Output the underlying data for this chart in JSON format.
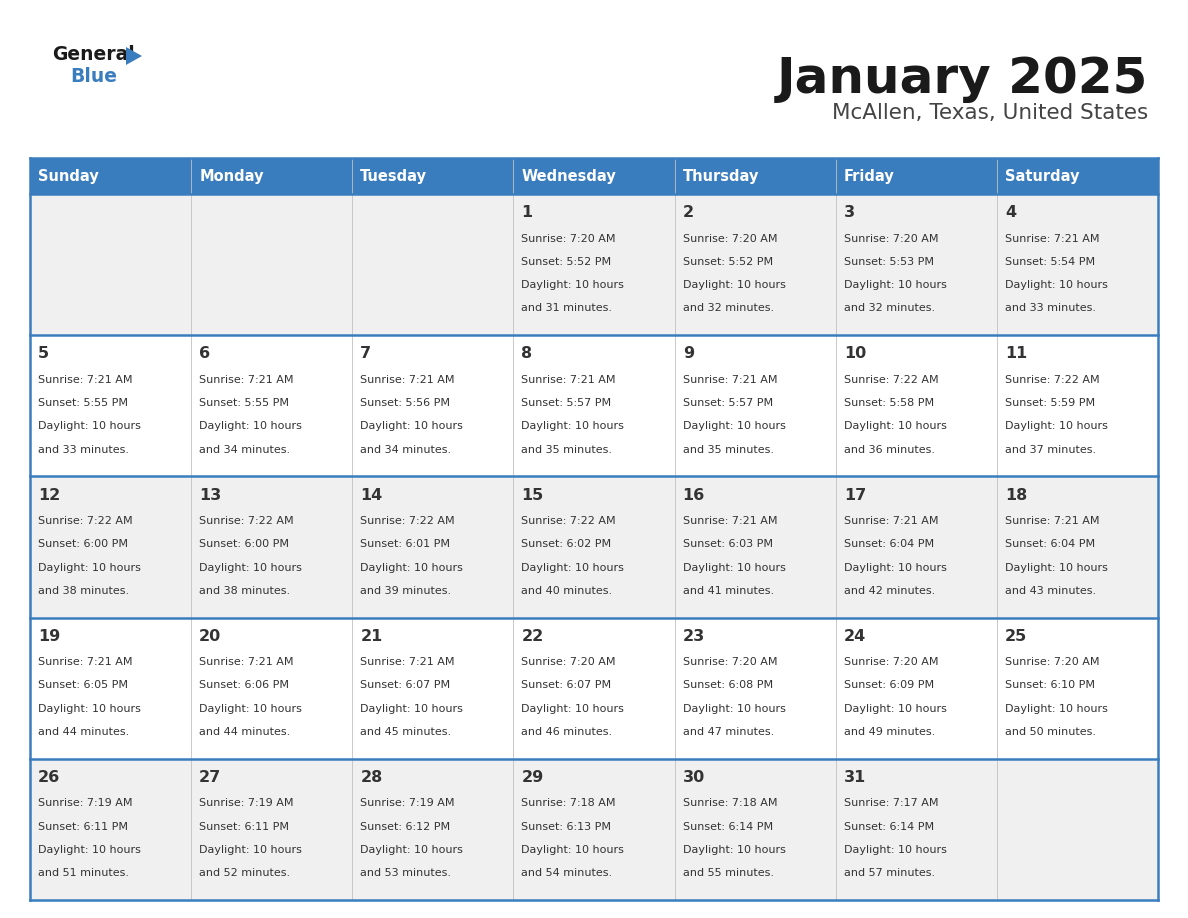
{
  "title": "January 2025",
  "subtitle": "McAllen, Texas, United States",
  "days_of_week": [
    "Sunday",
    "Monday",
    "Tuesday",
    "Wednesday",
    "Thursday",
    "Friday",
    "Saturday"
  ],
  "header_bg": "#3a7dbf",
  "header_text": "#ffffff",
  "cell_bg_odd": "#f0f0f0",
  "cell_bg_even": "#ffffff",
  "cell_text": "#333333",
  "border_color": "#3a7dbf",
  "title_color": "#1a1a1a",
  "subtitle_color": "#444444",
  "calendar": [
    [
      null,
      null,
      null,
      {
        "day": 1,
        "sunrise": "7:20 AM",
        "sunset": "5:52 PM",
        "daylight_min": 31
      },
      {
        "day": 2,
        "sunrise": "7:20 AM",
        "sunset": "5:52 PM",
        "daylight_min": 32
      },
      {
        "day": 3,
        "sunrise": "7:20 AM",
        "sunset": "5:53 PM",
        "daylight_min": 32
      },
      {
        "day": 4,
        "sunrise": "7:21 AM",
        "sunset": "5:54 PM",
        "daylight_min": 33
      }
    ],
    [
      {
        "day": 5,
        "sunrise": "7:21 AM",
        "sunset": "5:55 PM",
        "daylight_min": 33
      },
      {
        "day": 6,
        "sunrise": "7:21 AM",
        "sunset": "5:55 PM",
        "daylight_min": 34
      },
      {
        "day": 7,
        "sunrise": "7:21 AM",
        "sunset": "5:56 PM",
        "daylight_min": 34
      },
      {
        "day": 8,
        "sunrise": "7:21 AM",
        "sunset": "5:57 PM",
        "daylight_min": 35
      },
      {
        "day": 9,
        "sunrise": "7:21 AM",
        "sunset": "5:57 PM",
        "daylight_min": 35
      },
      {
        "day": 10,
        "sunrise": "7:22 AM",
        "sunset": "5:58 PM",
        "daylight_min": 36
      },
      {
        "day": 11,
        "sunrise": "7:22 AM",
        "sunset": "5:59 PM",
        "daylight_min": 37
      }
    ],
    [
      {
        "day": 12,
        "sunrise": "7:22 AM",
        "sunset": "6:00 PM",
        "daylight_min": 38
      },
      {
        "day": 13,
        "sunrise": "7:22 AM",
        "sunset": "6:00 PM",
        "daylight_min": 38
      },
      {
        "day": 14,
        "sunrise": "7:22 AM",
        "sunset": "6:01 PM",
        "daylight_min": 39
      },
      {
        "day": 15,
        "sunrise": "7:22 AM",
        "sunset": "6:02 PM",
        "daylight_min": 40
      },
      {
        "day": 16,
        "sunrise": "7:21 AM",
        "sunset": "6:03 PM",
        "daylight_min": 41
      },
      {
        "day": 17,
        "sunrise": "7:21 AM",
        "sunset": "6:04 PM",
        "daylight_min": 42
      },
      {
        "day": 18,
        "sunrise": "7:21 AM",
        "sunset": "6:04 PM",
        "daylight_min": 43
      }
    ],
    [
      {
        "day": 19,
        "sunrise": "7:21 AM",
        "sunset": "6:05 PM",
        "daylight_min": 44
      },
      {
        "day": 20,
        "sunrise": "7:21 AM",
        "sunset": "6:06 PM",
        "daylight_min": 44
      },
      {
        "day": 21,
        "sunrise": "7:21 AM",
        "sunset": "6:07 PM",
        "daylight_min": 45
      },
      {
        "day": 22,
        "sunrise": "7:20 AM",
        "sunset": "6:07 PM",
        "daylight_min": 46
      },
      {
        "day": 23,
        "sunrise": "7:20 AM",
        "sunset": "6:08 PM",
        "daylight_min": 47
      },
      {
        "day": 24,
        "sunrise": "7:20 AM",
        "sunset": "6:09 PM",
        "daylight_min": 49
      },
      {
        "day": 25,
        "sunrise": "7:20 AM",
        "sunset": "6:10 PM",
        "daylight_min": 50
      }
    ],
    [
      {
        "day": 26,
        "sunrise": "7:19 AM",
        "sunset": "6:11 PM",
        "daylight_min": 51
      },
      {
        "day": 27,
        "sunrise": "7:19 AM",
        "sunset": "6:11 PM",
        "daylight_min": 52
      },
      {
        "day": 28,
        "sunrise": "7:19 AM",
        "sunset": "6:12 PM",
        "daylight_min": 53
      },
      {
        "day": 29,
        "sunrise": "7:18 AM",
        "sunset": "6:13 PM",
        "daylight_min": 54
      },
      {
        "day": 30,
        "sunrise": "7:18 AM",
        "sunset": "6:14 PM",
        "daylight_min": 55
      },
      {
        "day": 31,
        "sunrise": "7:17 AM",
        "sunset": "6:14 PM",
        "daylight_min": 57
      },
      null
    ]
  ],
  "logo_general_color": "#1a1a1a",
  "logo_blue_color": "#3a7dbf"
}
